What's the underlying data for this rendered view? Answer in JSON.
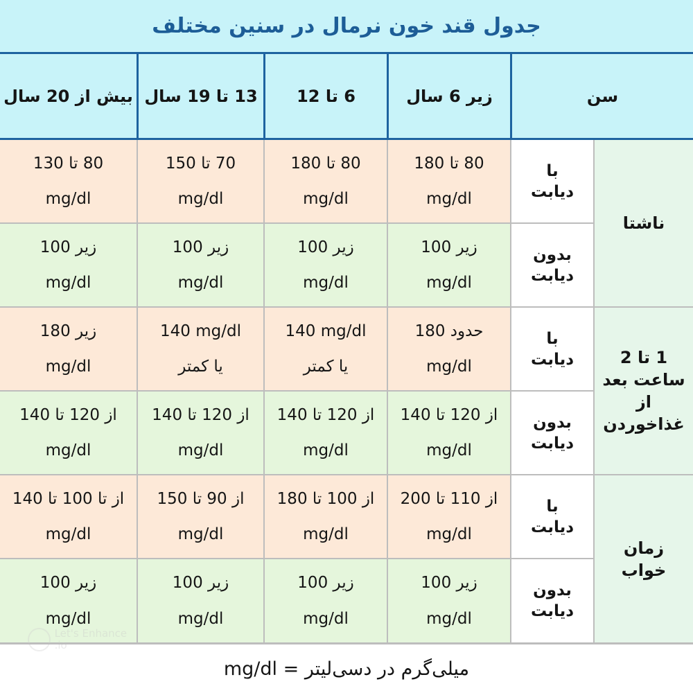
{
  "title": "جدول قند خون نرمال در سنین مختلف",
  "headers": {
    "age": "سن",
    "under6": "زیر 6 سال",
    "six_to_twelve": "6 تا 12",
    "thirteen_to_nineteen": "13 تا 19 سال",
    "over20": "بیش از 20 سال"
  },
  "groups": {
    "fasting": "ناشتا",
    "after_meal": "1 تا 2 ساعت بعد از غذاخوردن",
    "bedtime": "زمان خواب"
  },
  "conditions": {
    "with_diabetes_1": "با",
    "with_diabetes_2": "دیابت",
    "without_diabetes_1": "بدون",
    "without_diabetes_2": "دیابت"
  },
  "rows": {
    "fasting_with": {
      "under6": [
        "80 تا 180",
        "mg/dl"
      ],
      "six_to_twelve": [
        "80 تا 180",
        "mg/dl"
      ],
      "thirteen_to_nineteen": [
        "70 تا 150",
        "mg/dl"
      ],
      "over20": [
        "80 تا 130",
        "mg/dl"
      ]
    },
    "fasting_without": {
      "under6": [
        "زیر 100",
        "mg/dl"
      ],
      "six_to_twelve": [
        "زیر 100",
        "mg/dl"
      ],
      "thirteen_to_nineteen": [
        "زیر 100",
        "mg/dl"
      ],
      "over20": [
        "زیر 100",
        "mg/dl"
      ]
    },
    "after_with": {
      "under6": [
        "حدود 180",
        "mg/dl"
      ],
      "six_to_twelve": [
        "140 mg/dl",
        "یا کمتر"
      ],
      "thirteen_to_nineteen": [
        "140 mg/dl",
        "یا کمتر"
      ],
      "over20": [
        "زیر 180",
        "mg/dl"
      ]
    },
    "after_without": {
      "under6": [
        "از 120 تا 140",
        "mg/dl"
      ],
      "six_to_twelve": [
        "از 120 تا 140",
        "mg/dl"
      ],
      "thirteen_to_nineteen": [
        "از 120 تا 140",
        "mg/dl"
      ],
      "over20": [
        "از 120 تا 140",
        "mg/dl"
      ]
    },
    "bed_with": {
      "under6": [
        "از 110 تا 200",
        "mg/dl"
      ],
      "six_to_twelve": [
        "از 100 تا 180",
        "mg/dl"
      ],
      "thirteen_to_nineteen": [
        "از 90 تا 150",
        "mg/dl"
      ],
      "over20": [
        "از تا 100 تا 140",
        "mg/dl"
      ]
    },
    "bed_without": {
      "under6": [
        "زیر 100",
        "mg/dl"
      ],
      "six_to_twelve": [
        "زیر 100",
        "mg/dl"
      ],
      "thirteen_to_nineteen": [
        "زیر 100",
        "mg/dl"
      ],
      "over20": [
        "زیر 100",
        "mg/dl"
      ]
    }
  },
  "footer": "میلی‌گرم در دسی‌لیتر = mg/dl",
  "watermark": "Let's Enhance .io",
  "colors": {
    "header_bg": "#c8f3f9",
    "header_border": "#1e63a0",
    "title_text": "#1d5d97",
    "peach_row": "#fde9d8",
    "green_row": "#e5f6dc",
    "group_bg": "#e6f6ea"
  }
}
